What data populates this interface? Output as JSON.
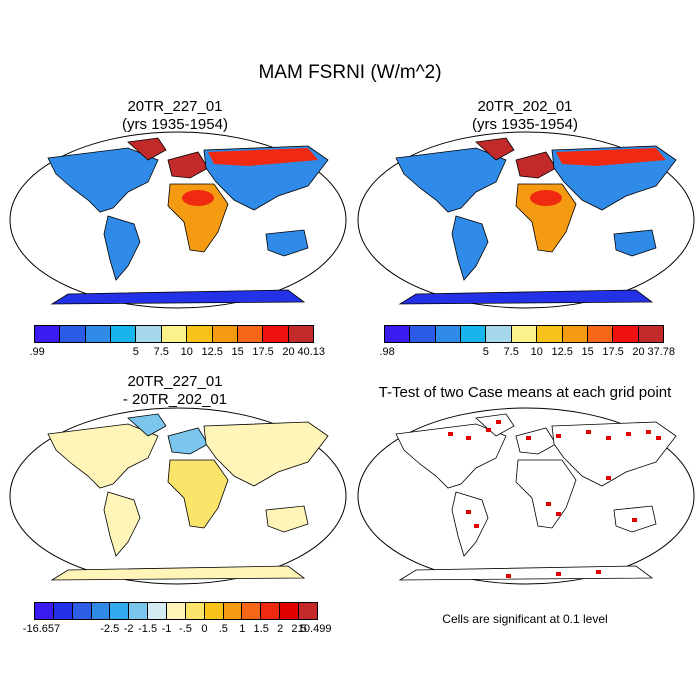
{
  "title": "MAM FSRNI (W/m^2)",
  "panels": {
    "tl": {
      "title1": "20TR_227_01",
      "title2": "(yrs 1935-1954)"
    },
    "tr": {
      "title1": "20TR_202_01",
      "title2": "(yrs 1935-1954)"
    },
    "bl": {
      "title1": "20TR_227_01",
      "title2": "- 20TR_202_01"
    },
    "br": {
      "title1": "T-Test of two Case means at each grid point",
      "note": "Cells are significant at 0.1 level"
    }
  },
  "colorbars": {
    "abs_colors": [
      "#3b1cf0",
      "#2a5be8",
      "#2f8ae8",
      "#18b4ec",
      "#a6d8ec",
      "#fbf28c",
      "#f9c21a",
      "#f59b12",
      "#f56617",
      "#f01010",
      "#c22a2a"
    ],
    "tl_labels": [
      ".99",
      "5",
      "7.5",
      "10",
      "12.5",
      "15",
      "17.5",
      "20",
      "40.13"
    ],
    "tr_labels": [
      ".98",
      "5",
      "7.5",
      "10",
      "12.5",
      "15",
      "17.5",
      "20",
      "37.78"
    ],
    "diff_colors": [
      "#3b1cf0",
      "#2332e6",
      "#2e5ee8",
      "#2f8ae8",
      "#31aaee",
      "#7cc6ee",
      "#d4ecf4",
      "#fff5b8",
      "#fbe46a",
      "#f9c21a",
      "#f59b12",
      "#f56617",
      "#f02a10",
      "#e00000",
      "#c42a2a"
    ],
    "diff_labels": [
      "-16.657",
      "-2.5",
      "-2",
      "-1.5",
      "-1",
      "-.5",
      "0",
      ".5",
      "1",
      "1.5",
      "2",
      "2.5",
      "10.499"
    ]
  }
}
